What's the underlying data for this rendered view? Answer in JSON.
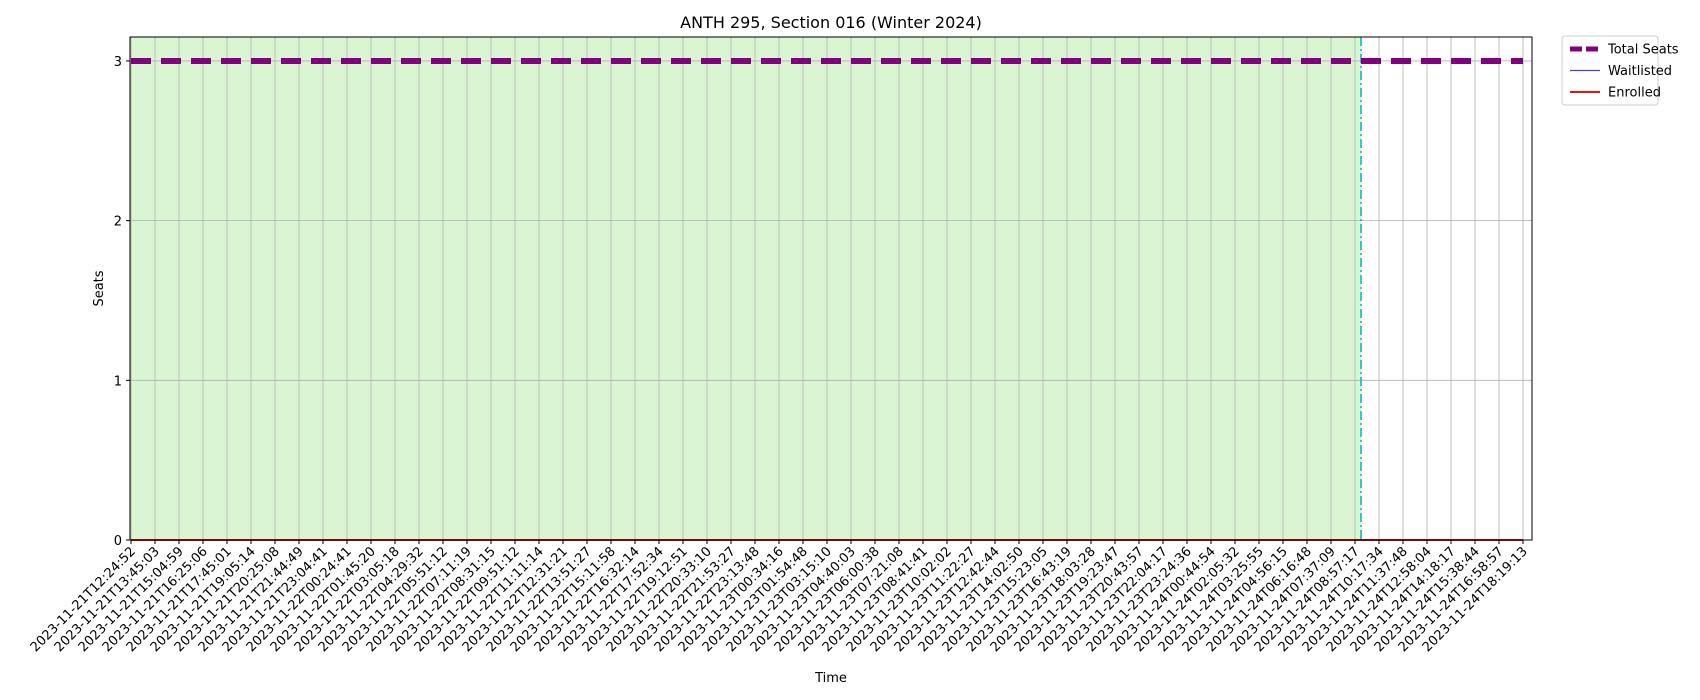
{
  "chart_data": {
    "type": "line",
    "title": "ANTH 295, Section 016 (Winter 2024)",
    "xlabel": "Time",
    "ylabel": "Seats",
    "ylim": [
      0,
      3.15
    ],
    "yticks": [
      "0",
      "1",
      "2",
      "3"
    ],
    "grid": true,
    "legend_position": "outside-top-right",
    "registration_open_until_index": 51.25,
    "categories": [
      "2023-11-21T12:24:52",
      "2023-11-21T13:45:03",
      "2023-11-21T15:04:59",
      "2023-11-21T16:25:06",
      "2023-11-21T17:45:01",
      "2023-11-21T19:05:14",
      "2023-11-21T20:25:08",
      "2023-11-21T21:44:49",
      "2023-11-21T23:04:41",
      "2023-11-22T00:24:41",
      "2023-11-22T01:45:20",
      "2023-11-22T03:05:18",
      "2023-11-22T04:29:32",
      "2023-11-22T05:51:12",
      "2023-11-22T07:11:19",
      "2023-11-22T08:31:15",
      "2023-11-22T09:51:12",
      "2023-11-22T11:11:14",
      "2023-11-22T12:31:21",
      "2023-11-22T13:51:27",
      "2023-11-22T15:11:58",
      "2023-11-22T16:32:14",
      "2023-11-22T17:52:34",
      "2023-11-22T19:12:51",
      "2023-11-22T20:33:10",
      "2023-11-22T21:53:27",
      "2023-11-22T23:13:48",
      "2023-11-23T00:34:16",
      "2023-11-23T01:54:48",
      "2023-11-23T03:15:10",
      "2023-11-23T04:40:03",
      "2023-11-23T06:00:38",
      "2023-11-23T07:21:08",
      "2023-11-23T08:41:41",
      "2023-11-23T10:02:02",
      "2023-11-23T11:22:27",
      "2023-11-23T12:42:44",
      "2023-11-23T14:02:50",
      "2023-11-23T15:23:05",
      "2023-11-23T16:43:19",
      "2023-11-23T18:03:28",
      "2023-11-23T19:23:47",
      "2023-11-23T20:43:57",
      "2023-11-23T22:04:17",
      "2023-11-23T23:24:36",
      "2023-11-24T00:44:54",
      "2023-11-24T02:05:32",
      "2023-11-24T03:25:55",
      "2023-11-24T04:56:15",
      "2023-11-24T06:16:48",
      "2023-11-24T07:37:09",
      "2023-11-24T08:57:17",
      "2023-11-24T10:17:34",
      "2023-11-24T11:37:48",
      "2023-11-24T12:58:04",
      "2023-11-24T14:18:17",
      "2023-11-24T15:38:44",
      "2023-11-24T16:58:57",
      "2023-11-24T18:19:13"
    ],
    "series": [
      {
        "name": "Total Seats",
        "color": "#800080",
        "style": "dashed-thick",
        "values": [
          3,
          3,
          3,
          3,
          3,
          3,
          3,
          3,
          3,
          3,
          3,
          3,
          3,
          3,
          3,
          3,
          3,
          3,
          3,
          3,
          3,
          3,
          3,
          3,
          3,
          3,
          3,
          3,
          3,
          3,
          3,
          3,
          3,
          3,
          3,
          3,
          3,
          3,
          3,
          3,
          3,
          3,
          3,
          3,
          3,
          3,
          3,
          3,
          3,
          3,
          3,
          3,
          3,
          3,
          3,
          3,
          3,
          3,
          3
        ]
      },
      {
        "name": "Waitlisted",
        "color": "#4444ee",
        "style": "solid-thin",
        "values": [
          0,
          0,
          0,
          0,
          0,
          0,
          0,
          0,
          0,
          0,
          0,
          0,
          0,
          0,
          0,
          0,
          0,
          0,
          0,
          0,
          0,
          0,
          0,
          0,
          0,
          0,
          0,
          0,
          0,
          0,
          0,
          0,
          0,
          0,
          0,
          0,
          0,
          0,
          0,
          0,
          0,
          0,
          0,
          0,
          0,
          0,
          0,
          0,
          0,
          0,
          0,
          0,
          0,
          0,
          0,
          0,
          0,
          0,
          0
        ]
      },
      {
        "name": "Enrolled",
        "color": "#e81414",
        "style": "solid",
        "values": [
          0,
          0,
          0,
          0,
          0,
          0,
          0,
          0,
          0,
          0,
          0,
          0,
          0,
          0,
          0,
          0,
          0,
          0,
          0,
          0,
          0,
          0,
          0,
          0,
          0,
          0,
          0,
          0,
          0,
          0,
          0,
          0,
          0,
          0,
          0,
          0,
          0,
          0,
          0,
          0,
          0,
          0,
          0,
          0,
          0,
          0,
          0,
          0,
          0,
          0,
          0,
          0,
          0,
          0,
          0,
          0,
          0,
          0,
          0
        ]
      }
    ],
    "colors": {
      "open_period_fill": "#daf5d2",
      "cutoff_line": "#00bfbf",
      "grid": "#b0b0b0"
    }
  }
}
